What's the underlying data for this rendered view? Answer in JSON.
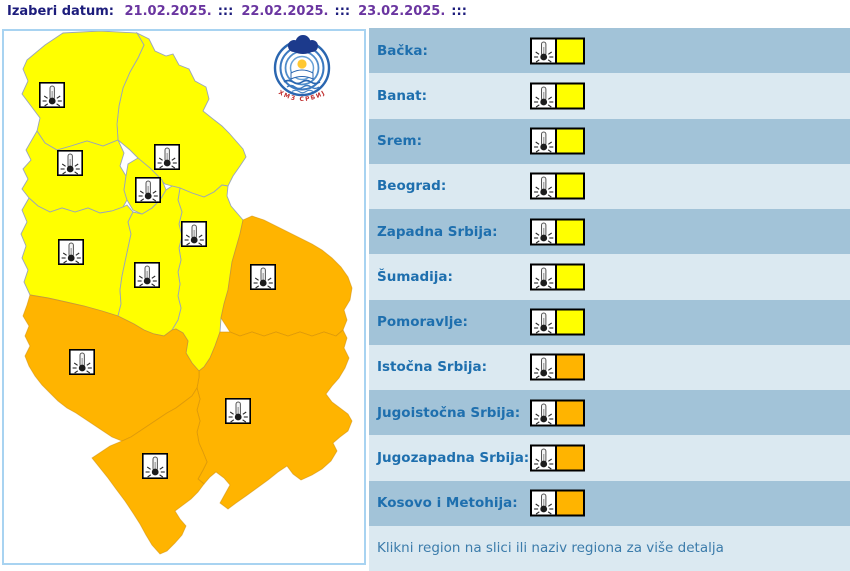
{
  "header": {
    "label": "Izaberi datum:",
    "dates": [
      "21.02.2025.",
      "22.02.2025.",
      "23.02.2025."
    ],
    "separator": ":::"
  },
  "logo": {
    "text": "РХМЗ СРБИЈЕ"
  },
  "warning_levels": {
    "yellow": "#ffff00",
    "orange": "#ffb400"
  },
  "icon_meaning": "low-temperature-thermometer-warning-icon",
  "regions": [
    {
      "id": "backa",
      "label": "Bačka:",
      "level": "yellow"
    },
    {
      "id": "banat",
      "label": "Banat:",
      "level": "yellow"
    },
    {
      "id": "srem",
      "label": "Srem:",
      "level": "yellow"
    },
    {
      "id": "beograd",
      "label": "Beograd:",
      "level": "yellow"
    },
    {
      "id": "zapadna-srbija",
      "label": "Zapadna Srbija:",
      "level": "yellow"
    },
    {
      "id": "sumadija",
      "label": "Šumadija:",
      "level": "yellow"
    },
    {
      "id": "pomoravlje",
      "label": "Pomoravlje:",
      "level": "yellow"
    },
    {
      "id": "istocna-srbija",
      "label": "Istočna Srbija:",
      "level": "orange"
    },
    {
      "id": "jugoistocna-srbija",
      "label": "Jugoistočna Srbija:",
      "level": "orange"
    },
    {
      "id": "jugozapadna-srbija",
      "label": "Jugozapadna Srbija:",
      "level": "orange"
    },
    {
      "id": "kosovo-i-metohija",
      "label": "Kosovo i Metohija:",
      "level": "orange"
    }
  ],
  "footer_note": "Klikni region na slici ili naziv regiona za više detalja"
}
